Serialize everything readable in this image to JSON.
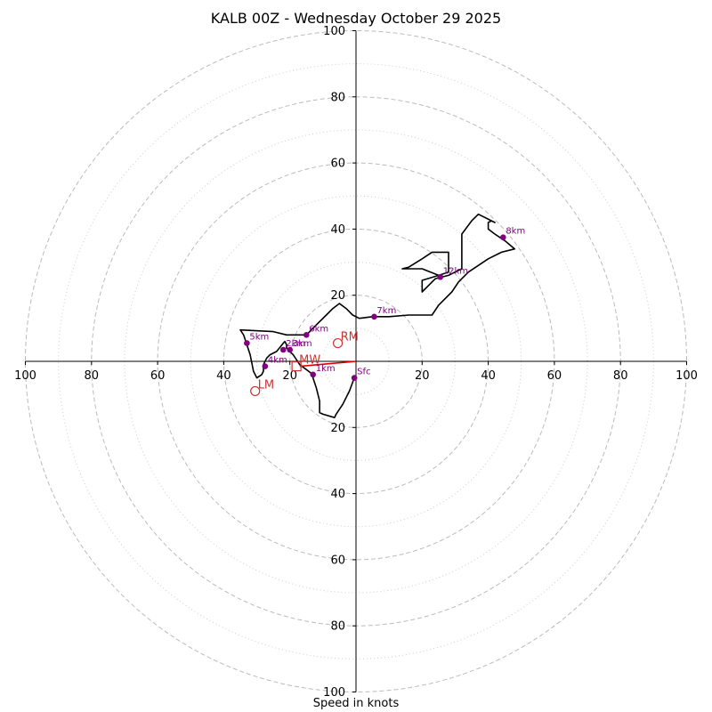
{
  "chart_data": {
    "type": "line",
    "title": "KALB 00Z - Wednesday October 29 2025",
    "xlabel": "Speed in knots",
    "ylabel": "",
    "xlim": [
      -100,
      100
    ],
    "ylim": [
      -100,
      100
    ],
    "grid": true,
    "ring_values": [
      20,
      40,
      60,
      80,
      100
    ],
    "minor_ring_values": [
      10,
      30,
      50,
      70,
      90
    ],
    "x_ticks": [
      {
        "value": -100,
        "label": "100"
      },
      {
        "value": -80,
        "label": "80"
      },
      {
        "value": -60,
        "label": "60"
      },
      {
        "value": -40,
        "label": "40"
      },
      {
        "value": -20,
        "label": "20"
      },
      {
        "value": 20,
        "label": "20"
      },
      {
        "value": 40,
        "label": "40"
      },
      {
        "value": 60,
        "label": "60"
      },
      {
        "value": 80,
        "label": "80"
      },
      {
        "value": 100,
        "label": "100"
      }
    ],
    "y_ticks": [
      {
        "value": 100,
        "label": "100"
      },
      {
        "value": 80,
        "label": "80"
      },
      {
        "value": 60,
        "label": "60"
      },
      {
        "value": 40,
        "label": "40"
      },
      {
        "value": 20,
        "label": "20"
      },
      {
        "value": -20,
        "label": "20"
      },
      {
        "value": -40,
        "label": "40"
      },
      {
        "value": -60,
        "label": "60"
      },
      {
        "value": -80,
        "label": "80"
      },
      {
        "value": -100,
        "label": "100"
      }
    ],
    "series": [
      {
        "name": "hodograph",
        "color": "#000000",
        "points": [
          [
            -0.5,
            -5
          ],
          [
            -2,
            -9
          ],
          [
            -4,
            -13
          ],
          [
            -6,
            -16
          ],
          [
            -6.5,
            -17
          ],
          [
            -10,
            -16
          ],
          [
            -11,
            -15.5
          ],
          [
            -11,
            -12
          ],
          [
            -12,
            -8
          ],
          [
            -13,
            -5
          ],
          [
            -13,
            -4
          ],
          [
            -17,
            -1
          ],
          [
            -19,
            2
          ],
          [
            -20,
            3
          ],
          [
            -21,
            4
          ],
          [
            -21,
            5
          ],
          [
            -21.5,
            6
          ],
          [
            -22,
            5.5
          ],
          [
            -24,
            3
          ],
          [
            -26,
            2
          ],
          [
            -27,
            1
          ],
          [
            -28,
            -1
          ],
          [
            -28,
            -3
          ],
          [
            -28.5,
            -4
          ],
          [
            -30,
            -5
          ],
          [
            -31,
            -3
          ],
          [
            -32,
            2
          ],
          [
            -33,
            5
          ],
          [
            -34,
            8
          ],
          [
            -35,
            9.5
          ],
          [
            -25,
            9
          ],
          [
            -21,
            8
          ],
          [
            -19,
            8
          ],
          [
            -17,
            8
          ],
          [
            -15,
            8
          ],
          [
            -12,
            11
          ],
          [
            -9,
            14
          ],
          [
            -7,
            16
          ],
          [
            -5,
            17.5
          ],
          [
            -3,
            16
          ],
          [
            -1,
            14
          ],
          [
            1,
            13
          ],
          [
            5,
            13.5
          ],
          [
            10,
            13.5
          ],
          [
            16,
            14
          ],
          [
            23,
            14
          ],
          [
            25,
            17
          ],
          [
            27,
            19
          ],
          [
            29,
            21
          ],
          [
            31,
            24
          ],
          [
            34,
            27
          ],
          [
            40,
            31
          ],
          [
            44,
            33
          ],
          [
            48,
            34
          ],
          [
            45,
            36.5
          ],
          [
            42,
            38.5
          ],
          [
            40,
            40
          ],
          [
            40,
            42
          ],
          [
            41,
            42.5
          ],
          [
            42,
            42
          ],
          [
            37,
            44.5
          ],
          [
            35,
            42.5
          ],
          [
            32,
            38.5
          ],
          [
            32,
            28
          ],
          [
            28,
            26
          ],
          [
            24,
            25
          ],
          [
            20,
            21
          ],
          [
            20,
            24.5
          ],
          [
            25,
            26
          ],
          [
            28,
            27
          ],
          [
            28,
            33
          ],
          [
            23,
            33
          ],
          [
            20,
            31
          ],
          [
            16,
            28.5
          ],
          [
            14,
            28
          ],
          [
            16,
            28
          ],
          [
            20,
            28
          ],
          [
            25,
            26
          ]
        ]
      },
      {
        "name": "mean-wind",
        "color": "#dd0000",
        "points": [
          [
            0,
            0
          ],
          [
            -17,
            -1.5
          ]
        ]
      }
    ],
    "height_markers": [
      {
        "label": "Sfc",
        "x": -0.5,
        "y": -5
      },
      {
        "label": "1km",
        "x": -13,
        "y": -4
      },
      {
        "label": "2km",
        "x": -22,
        "y": 3.5
      },
      {
        "label": "3km",
        "x": -20,
        "y": 3.5
      },
      {
        "label": "4km",
        "x": -27.5,
        "y": -1.5
      },
      {
        "label": "5km",
        "x": -33,
        "y": 5.5
      },
      {
        "label": "6km",
        "x": -15,
        "y": 8
      },
      {
        "label": "7km",
        "x": 5.5,
        "y": 13.5
      },
      {
        "label": "8km",
        "x": 44.5,
        "y": 37.5
      },
      {
        "label": "12km",
        "x": 25.5,
        "y": 25.5
      }
    ],
    "storm_motion": [
      {
        "label": "RM",
        "x": -5.5,
        "y": 5.5,
        "shape": "circle",
        "color": "#cc3333"
      },
      {
        "label": "LM",
        "x": -30.5,
        "y": -9,
        "shape": "circle",
        "color": "#cc3333"
      },
      {
        "label": "MW",
        "x": -18,
        "y": -1.5,
        "shape": "square",
        "color": "#cc3333"
      }
    ],
    "colors": {
      "marker": "#800080",
      "marker_label": "#800080",
      "storm_motion": "#cc3333",
      "major_grid": "#bbbbbb",
      "minor_grid": "#cccccc",
      "axis": "#000000"
    }
  }
}
